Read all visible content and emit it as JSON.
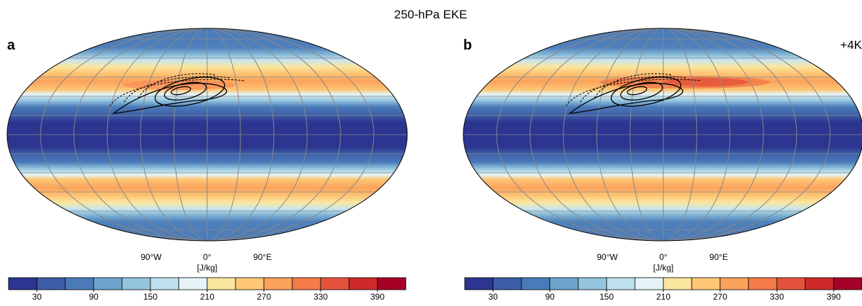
{
  "title": "250-hPa EKE",
  "panels": [
    {
      "label": "a",
      "lon_labels": [
        "90°W",
        "0°",
        "90°E"
      ],
      "unit": "[J/kg]",
      "colorbar": {
        "colors": [
          "#2c3590",
          "#3d5ea8",
          "#4a7ab8",
          "#6da4cc",
          "#94c5df",
          "#bfe1ee",
          "#e6f4f7",
          "#fbe6a0",
          "#fdc776",
          "#fba25c",
          "#f47b4a",
          "#e5523b",
          "#cf2a2a",
          "#a50026"
        ],
        "lim": [
          0,
          420
        ],
        "ticks": [
          30,
          90,
          150,
          210,
          270,
          330,
          390
        ]
      }
    },
    {
      "label": "b",
      "annotation": "+4K",
      "lon_labels": [
        "90°W",
        "0°",
        "90°E"
      ],
      "unit": "[J/kg]",
      "colorbar": {
        "colors": [
          "#2c3590",
          "#3d5ea8",
          "#4a7ab8",
          "#6da4cc",
          "#94c5df",
          "#bfe1ee",
          "#e6f4f7",
          "#fbe6a0",
          "#fdc776",
          "#fba25c",
          "#f47b4a",
          "#e5523b",
          "#cf2a2a",
          "#a50026"
        ],
        "lim": [
          0,
          420
        ],
        "ticks": [
          30,
          90,
          150,
          210,
          270,
          330,
          390
        ]
      }
    }
  ]
}
